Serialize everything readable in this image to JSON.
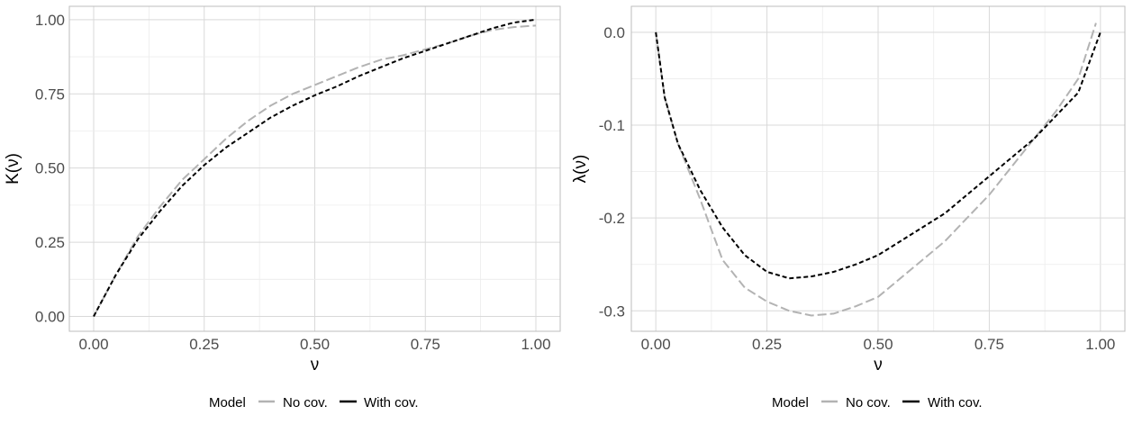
{
  "chart_data": [
    {
      "type": "line",
      "xlabel": "ν",
      "ylabel": "K(ν)",
      "xlim": [
        -0.055,
        1.055
      ],
      "ylim": [
        -0.05,
        1.045
      ],
      "xticks": [
        0.0,
        0.25,
        0.5,
        0.75,
        1.0
      ],
      "xtick_labels": [
        "0.00",
        "0.25",
        "0.50",
        "0.75",
        "1.00"
      ],
      "yticks": [
        0.0,
        0.25,
        0.5,
        0.75,
        1.0
      ],
      "ytick_labels": [
        "0.00",
        "0.25",
        "0.50",
        "0.75",
        "1.00"
      ],
      "grid": true,
      "legend": {
        "title": "Model",
        "placement": "bottom",
        "entries": [
          "No cov.",
          "With cov."
        ]
      },
      "series": [
        {
          "name": "No cov.",
          "color": "#b3b3b3",
          "dash": "long-dash",
          "x": [
            0,
            0.05,
            0.1,
            0.15,
            0.2,
            0.25,
            0.3,
            0.35,
            0.4,
            0.45,
            0.5,
            0.55,
            0.6,
            0.65,
            0.7,
            0.75,
            0.8,
            0.85,
            0.9,
            0.95,
            1.0
          ],
          "y": [
            0,
            0.14,
            0.27,
            0.37,
            0.46,
            0.53,
            0.6,
            0.66,
            0.71,
            0.75,
            0.78,
            0.81,
            0.84,
            0.865,
            0.88,
            0.9,
            0.92,
            0.945,
            0.965,
            0.975,
            0.98
          ]
        },
        {
          "name": "With cov.",
          "color": "#000000",
          "dash": "short-dash",
          "x": [
            0,
            0.05,
            0.1,
            0.15,
            0.2,
            0.25,
            0.3,
            0.35,
            0.4,
            0.45,
            0.5,
            0.55,
            0.6,
            0.65,
            0.7,
            0.75,
            0.8,
            0.85,
            0.9,
            0.95,
            1.0
          ],
          "y": [
            0,
            0.14,
            0.26,
            0.355,
            0.44,
            0.51,
            0.57,
            0.62,
            0.67,
            0.71,
            0.745,
            0.775,
            0.81,
            0.84,
            0.87,
            0.895,
            0.92,
            0.945,
            0.97,
            0.99,
            1.0
          ]
        }
      ]
    },
    {
      "type": "line",
      "xlabel": "ν",
      "ylabel": "λ(ν)",
      "xlim": [
        -0.055,
        1.055
      ],
      "ylim": [
        -0.322,
        0.028
      ],
      "xticks": [
        0.0,
        0.25,
        0.5,
        0.75,
        1.0
      ],
      "xtick_labels": [
        "0.00",
        "0.25",
        "0.50",
        "0.75",
        "1.00"
      ],
      "yticks": [
        0.0,
        -0.1,
        -0.2,
        -0.3
      ],
      "ytick_labels": [
        "0.0",
        "-0.1",
        "-0.2",
        "-0.3"
      ],
      "grid": true,
      "legend": {
        "title": "Model",
        "placement": "bottom",
        "entries": [
          "No cov.",
          "With cov."
        ]
      },
      "series": [
        {
          "name": "No cov.",
          "color": "#b3b3b3",
          "dash": "long-dash",
          "x": [
            0,
            0.02,
            0.05,
            0.1,
            0.15,
            0.2,
            0.25,
            0.3,
            0.35,
            0.4,
            0.45,
            0.5,
            0.55,
            0.6,
            0.65,
            0.7,
            0.75,
            0.8,
            0.85,
            0.9,
            0.95,
            0.99
          ],
          "y": [
            0,
            -0.07,
            -0.12,
            -0.18,
            -0.245,
            -0.275,
            -0.29,
            -0.3,
            -0.305,
            -0.303,
            -0.295,
            -0.285,
            -0.265,
            -0.245,
            -0.225,
            -0.2,
            -0.175,
            -0.145,
            -0.115,
            -0.085,
            -0.05,
            0.01
          ]
        },
        {
          "name": "With cov.",
          "color": "#000000",
          "dash": "short-dash",
          "x": [
            0,
            0.02,
            0.05,
            0.1,
            0.15,
            0.2,
            0.25,
            0.3,
            0.35,
            0.4,
            0.45,
            0.5,
            0.55,
            0.6,
            0.65,
            0.7,
            0.75,
            0.8,
            0.85,
            0.9,
            0.95,
            1.0
          ],
          "y": [
            0,
            -0.07,
            -0.12,
            -0.17,
            -0.21,
            -0.24,
            -0.258,
            -0.265,
            -0.263,
            -0.258,
            -0.25,
            -0.24,
            -0.225,
            -0.21,
            -0.195,
            -0.175,
            -0.155,
            -0.135,
            -0.115,
            -0.09,
            -0.065,
            0.0
          ]
        }
      ]
    }
  ]
}
